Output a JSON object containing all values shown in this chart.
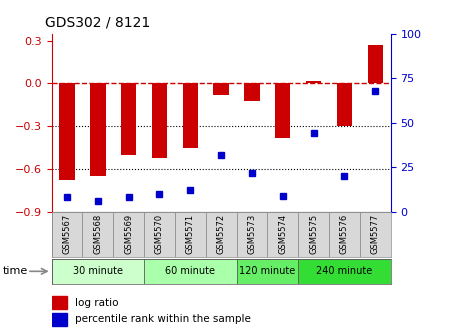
{
  "title": "GDS302 / 8121",
  "samples": [
    "GSM5567",
    "GSM5568",
    "GSM5569",
    "GSM5570",
    "GSM5571",
    "GSM5572",
    "GSM5573",
    "GSM5574",
    "GSM5575",
    "GSM5576",
    "GSM5577"
  ],
  "log_ratio": [
    -0.68,
    -0.65,
    -0.5,
    -0.52,
    -0.45,
    -0.08,
    -0.12,
    -0.38,
    0.02,
    -0.3,
    0.27
  ],
  "percentile": [
    8,
    6,
    8,
    10,
    12,
    32,
    22,
    9,
    44,
    20,
    68
  ],
  "bar_color": "#cc0000",
  "dot_color": "#0000cc",
  "ylim_left": [
    -0.9,
    0.35
  ],
  "ylim_right": [
    0,
    100
  ],
  "yticks_left": [
    -0.9,
    -0.6,
    -0.3,
    0.0,
    0.3
  ],
  "yticks_right": [
    0,
    25,
    50,
    75,
    100
  ],
  "groups": [
    {
      "label": "30 minute",
      "start": 0,
      "end": 3,
      "color": "#ccffcc"
    },
    {
      "label": "60 minute",
      "start": 3,
      "end": 6,
      "color": "#aaffaa"
    },
    {
      "label": "120 minute",
      "start": 6,
      "end": 8,
      "color": "#66ee66"
    },
    {
      "label": "240 minute",
      "start": 8,
      "end": 11,
      "color": "#33dd33"
    }
  ],
  "time_label": "time",
  "legend_bar_label": "log ratio",
  "legend_dot_label": "percentile rank within the sample",
  "ref_line_color": "#cc0000",
  "background_color": "#ffffff"
}
